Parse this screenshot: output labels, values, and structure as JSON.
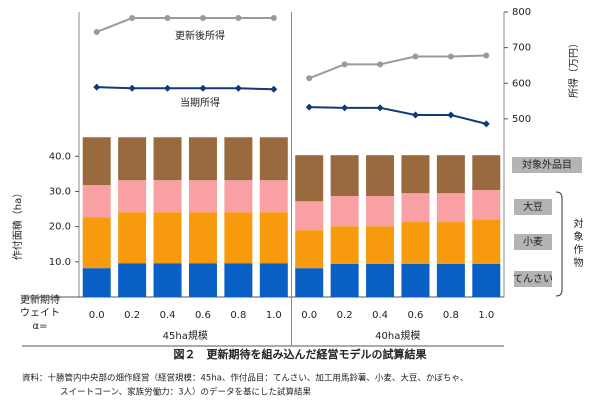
{
  "chart_data": {
    "type": "bar",
    "groups": [
      {
        "label": "45ha規模",
        "categories": [
          "0.0",
          "0.2",
          "0.4",
          "0.6",
          "0.8",
          "1.0"
        ]
      },
      {
        "label": "40ha規模",
        "categories": [
          "0.0",
          "0.2",
          "0.4",
          "0.6",
          "0.8",
          "1.0"
        ]
      }
    ],
    "x_row_label": [
      "更新期待",
      "ウェイト",
      "α="
    ],
    "ylabel": "作付面積（ha）",
    "y2label": "所得（万円）",
    "ylim": [
      0,
      81
    ],
    "yticks": [
      {
        "value": 10,
        "label": "10.0"
      },
      {
        "value": 20,
        "label": "20.0"
      },
      {
        "value": 30,
        "label": "30.0"
      },
      {
        "value": 40,
        "label": "40.0"
      }
    ],
    "y2lim": [
      0,
      800
    ],
    "y2ticks": [
      500,
      600,
      700,
      800
    ],
    "bracket_label": "対象作物",
    "series": [
      {
        "name": "てんさい",
        "type": "bar",
        "color": "#0a5fc4",
        "values": [
          8.2,
          9.6,
          9.6,
          9.6,
          9.6,
          9.6,
          8.2,
          9.4,
          9.4,
          9.4,
          9.4,
          9.4
        ]
      },
      {
        "name": "小麦",
        "type": "bar",
        "color": "#f79a0e",
        "values": [
          14.5,
          14.5,
          14.5,
          14.5,
          14.5,
          14.5,
          10.8,
          10.7,
          10.7,
          11.9,
          11.9,
          12.7
        ]
      },
      {
        "name": "大豆",
        "type": "bar",
        "color": "#f9a0a4",
        "values": [
          9.1,
          9.1,
          9.1,
          9.1,
          9.1,
          9.1,
          8.2,
          8.6,
          8.6,
          8.2,
          8.2,
          8.3
        ]
      },
      {
        "name": "対象外品目",
        "type": "bar",
        "color": "#9a6a3f",
        "values": [
          13.6,
          12.2,
          12.2,
          12.2,
          12.2,
          12.2,
          13.1,
          11.6,
          11.6,
          10.8,
          10.8,
          9.9
        ]
      },
      {
        "name": "更新後所得",
        "type": "line",
        "axis": "y2",
        "color": "#9a9a9a",
        "values": [
          744,
          783,
          783,
          783,
          783,
          783,
          614,
          653,
          653,
          675,
          675,
          678
        ]
      },
      {
        "name": "当期所得",
        "type": "line",
        "axis": "y2",
        "color": "#103a7a",
        "values": [
          589,
          586,
          586,
          586,
          586,
          583,
          533,
          531,
          531,
          511,
          511,
          486
        ]
      }
    ],
    "caption": "図２　更新期待を組み込んだ経営モデルの試算結果",
    "note": [
      "資料：十勝管内中央部の畑作経営（経営規模：45ha、作付品目：てんさい、加工用馬鈴薯、小麦、大豆、かぼちゃ、",
      "スイートコーン、家族労働力：3人）のデータを基にした試算結果"
    ]
  }
}
